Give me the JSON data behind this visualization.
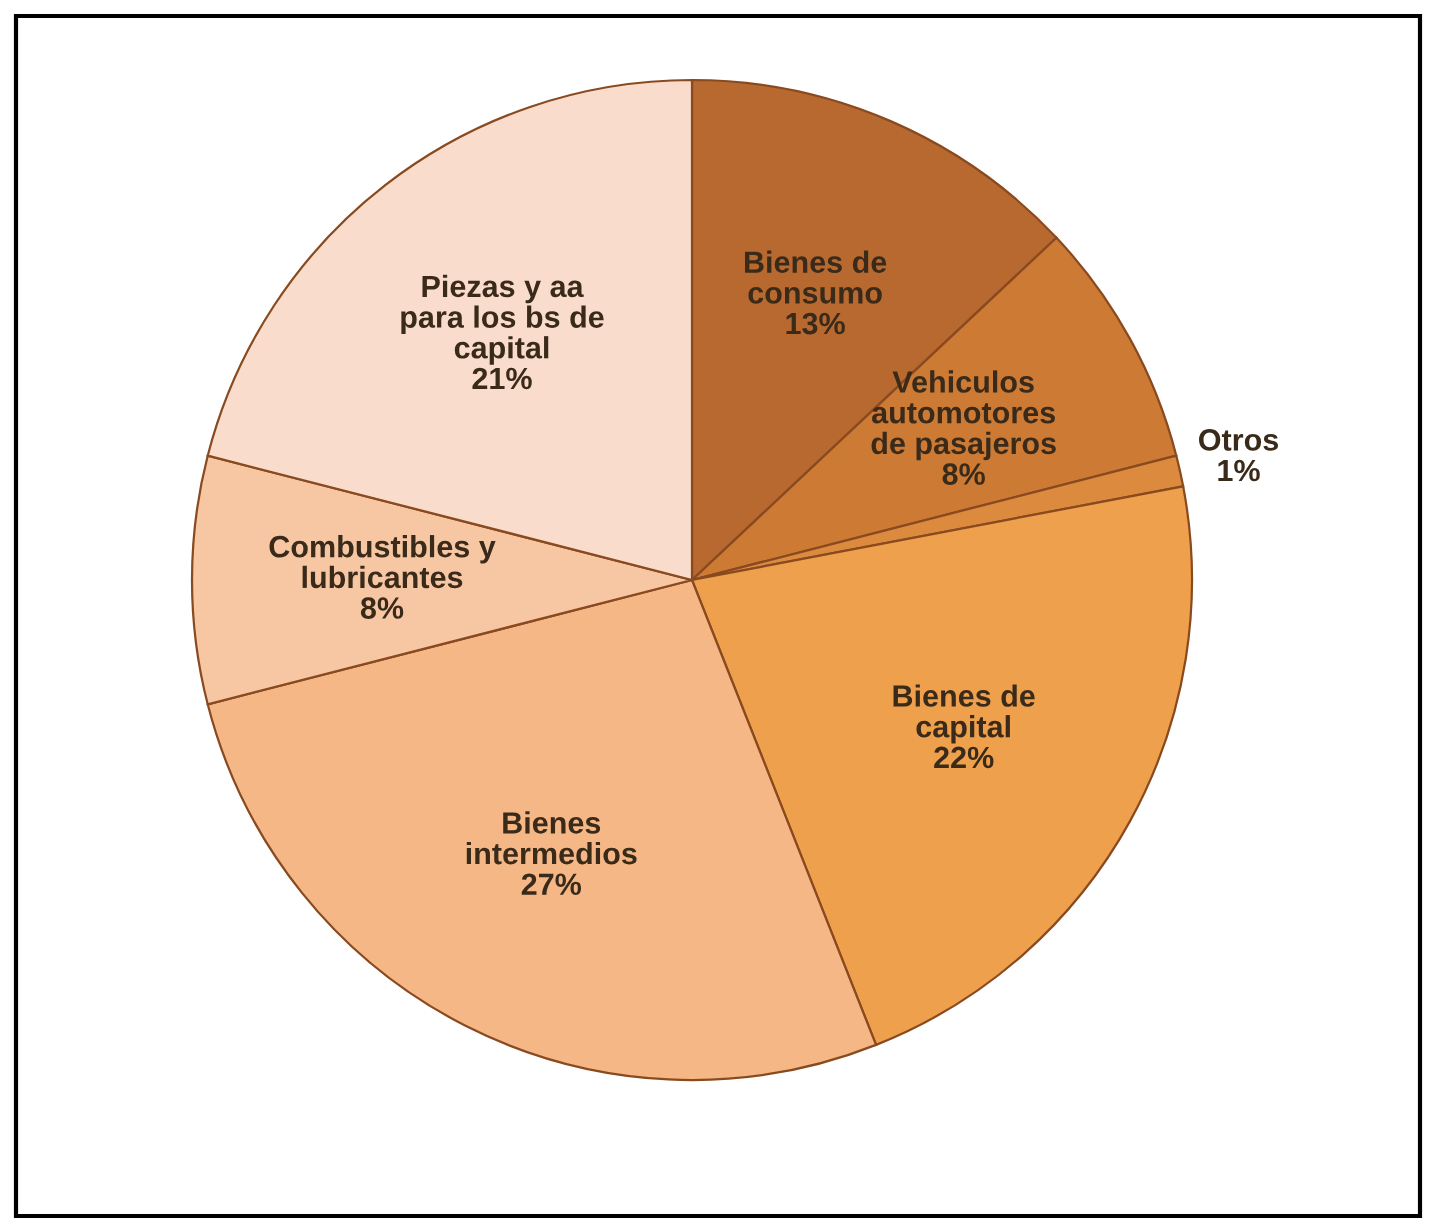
{
  "chart_data": {
    "type": "pie",
    "categories": [
      "Bienes de\nconsumo",
      "Vehiculos\nautomotores\nde pasajeros",
      "Otros",
      "Bienes de\ncapital",
      "Bienes\nintermedios",
      "Combustibles y\nlubricantes",
      "Piezas y aa\npara los bs de\ncapital"
    ],
    "values": [
      13,
      8,
      1,
      22,
      27,
      8,
      21
    ],
    "colors": [
      "#b8692f",
      "#cc7a34",
      "#dc8a3e",
      "#efa04c",
      "#f5b785",
      "#f7c6a3",
      "#f9dccb"
    ],
    "value_labels": [
      "13%",
      "8%",
      "1%",
      "22%",
      "27%",
      "8%",
      "21%"
    ]
  }
}
